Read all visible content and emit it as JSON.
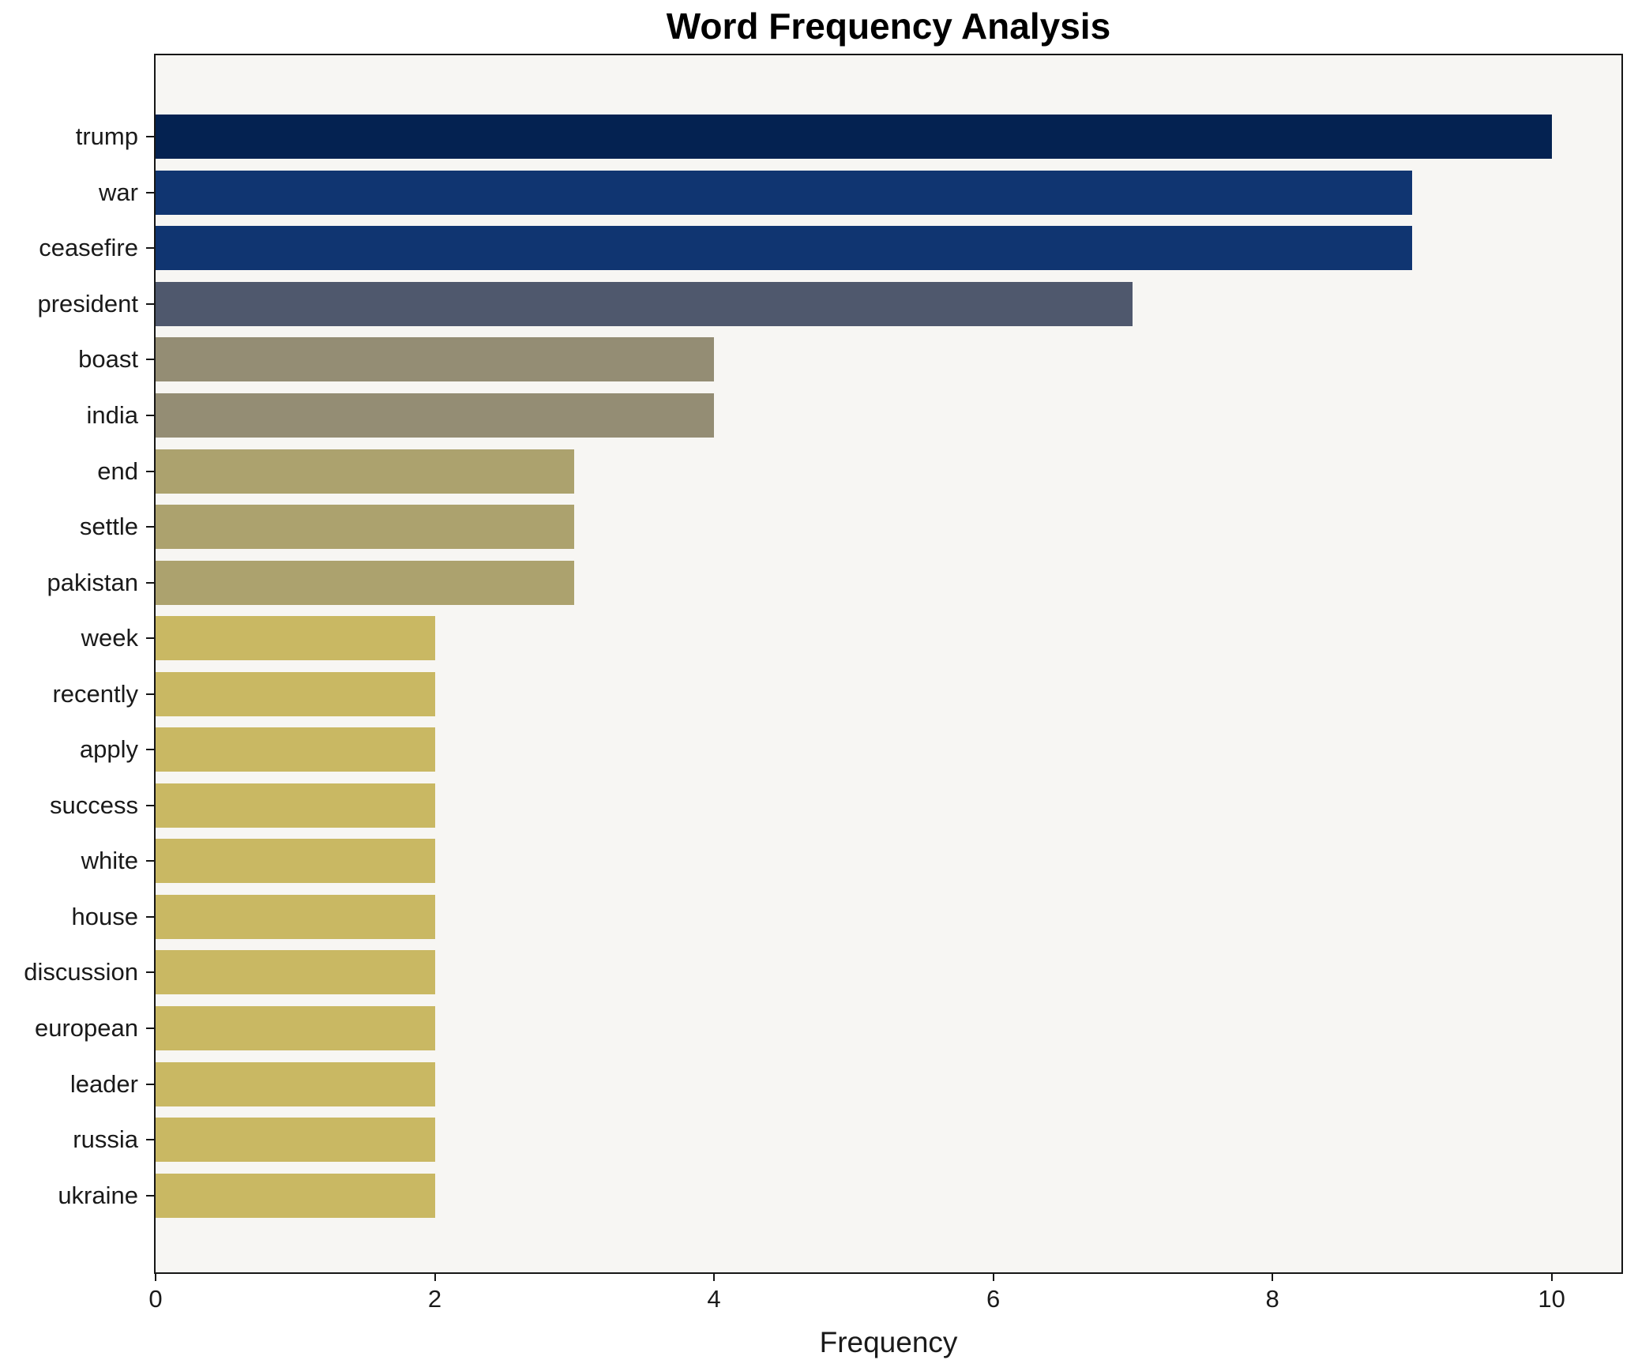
{
  "chart_data": {
    "type": "bar",
    "orientation": "horizontal",
    "title": "Word Frequency Analysis",
    "xlabel": "Frequency",
    "ylabel": "",
    "categories": [
      "trump",
      "war",
      "ceasefire",
      "president",
      "boast",
      "india",
      "end",
      "settle",
      "pakistan",
      "week",
      "recently",
      "apply",
      "success",
      "white",
      "house",
      "discussion",
      "european",
      "leader",
      "russia",
      "ukraine"
    ],
    "values": [
      10,
      9,
      9,
      7,
      4,
      4,
      3,
      3,
      3,
      2,
      2,
      2,
      2,
      2,
      2,
      2,
      2,
      2,
      2,
      2
    ],
    "bar_colors": [
      "#042251",
      "#103571",
      "#103571",
      "#4f586d",
      "#948d74",
      "#948d74",
      "#aca26e",
      "#aca26e",
      "#aca26e",
      "#c9b863",
      "#c9b863",
      "#c9b863",
      "#c9b863",
      "#c9b863",
      "#c9b863",
      "#c9b863",
      "#c9b863",
      "#c9b863",
      "#c9b863",
      "#c9b863"
    ],
    "xlim": [
      0,
      10.5
    ],
    "xticks": [
      0,
      2,
      4,
      6,
      8,
      10
    ],
    "grid": false,
    "legend_position": "none",
    "plot_background": "#f7f6f3",
    "figure_background": "#ffffff",
    "axis_color": "#161616"
  }
}
